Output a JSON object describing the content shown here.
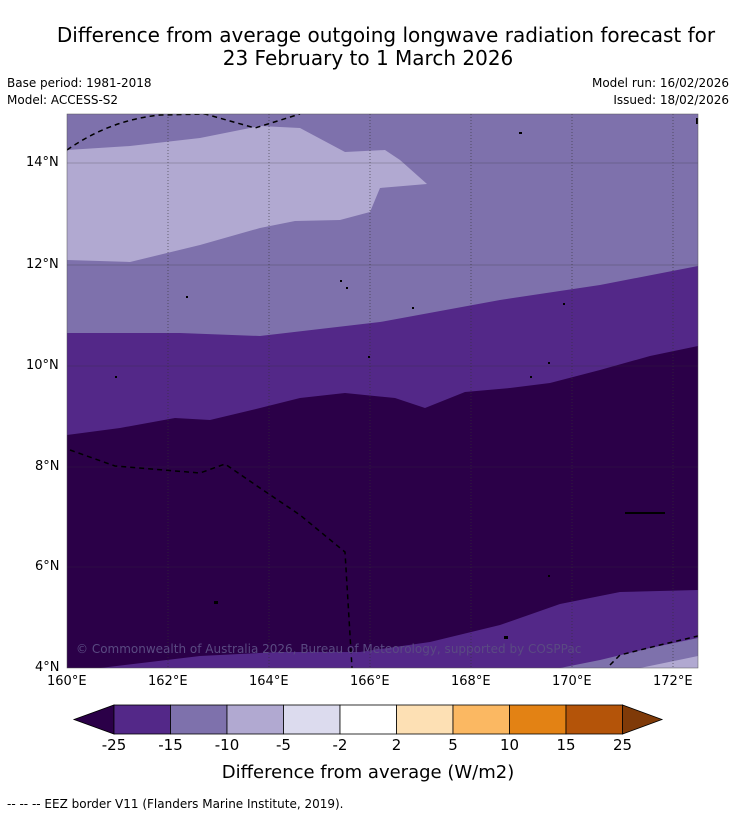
{
  "title_line1": "Difference from average outgoing longwave radiation forecast for",
  "title_line2": "23 February to 1 March 2026",
  "base_period": "Base period: 1981-2018",
  "model": "Model: ACCESS-S2",
  "model_run": "Model run: 16/02/2026",
  "issued": "Issued: 18/02/2026",
  "copyright": "© Commonwealth of Australia 2026, Bureau of Meteorology, supported by COSPPac",
  "lat_ticks": [
    "14°N",
    "12°N",
    "10°N",
    "8°N",
    "6°N",
    "4°N"
  ],
  "lon_ticks": [
    "160°E",
    "162°E",
    "164°E",
    "166°E",
    "168°E",
    "170°E",
    "172°E"
  ],
  "colorbar": {
    "title": "Difference from average (W/m2)",
    "labels": [
      "-25",
      "-15",
      "-10",
      "-5",
      "-2",
      "2",
      "5",
      "10",
      "15",
      "25"
    ],
    "colors": [
      "#2b0048",
      "#532888",
      "#7e71ac",
      "#b1a9d1",
      "#dcdbee",
      "#ffffff",
      "#fde0b4",
      "#fbb862",
      "#e38214",
      "#b45409",
      "#7f3a08"
    ]
  },
  "footer": "--  --  -- EEZ border V11 (Flanders Marine Institute, 2019)."
}
